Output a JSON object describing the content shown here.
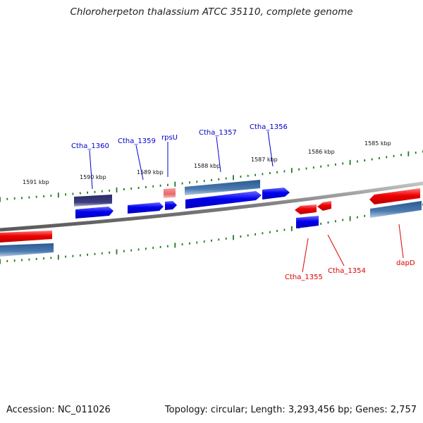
{
  "title": "Chloroherpeton thalassium ATCC 35110, complete genome",
  "footer": {
    "accession": "Accession: NC_011026",
    "topology": "Topology: circular; Length: 3,293,456 bp; Genes: 2,757"
  },
  "scale_labels": [
    "1585 kbp",
    "1586 kbp",
    "1587 kbp",
    "1588 kbp",
    "1589 kbp",
    "1590 kbp",
    "1591 kbp"
  ],
  "gene_labels": {
    "ctha_1360": "Ctha_1360",
    "ctha_1359": "Ctha_1359",
    "rpsu": "rpsU",
    "ctha_1357": "Ctha_1357",
    "ctha_1356": "Ctha_1356",
    "ctha_1355": "Ctha_1355",
    "ctha_1354": "Ctha_1354",
    "dapd": "dapD"
  },
  "colors": {
    "forward_label": "#0000cc",
    "reverse_label": "#dd0000",
    "cds_blue": "#0000ee",
    "cds_red": "#ee0000",
    "steel_blue": "#4a7ab0",
    "dark_purple": "#3c3c80",
    "pink": "#ea6a6a",
    "backbone": "#808080",
    "tick": "#1f7a1f"
  }
}
